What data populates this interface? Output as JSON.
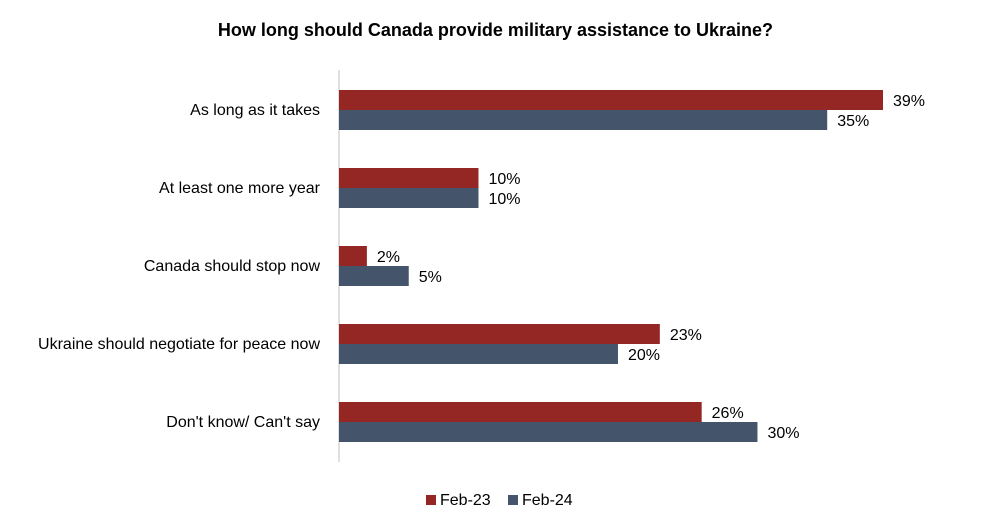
{
  "chart_data": {
    "type": "bar",
    "orientation": "horizontal",
    "title": "How long should Canada provide military assistance to Ukraine?",
    "categories": [
      "As long as it takes",
      "At least one more year",
      "Canada should stop now",
      "Ukraine should negotiate for peace now",
      "Don't know/ Can't say"
    ],
    "series": [
      {
        "name": "Feb-23",
        "color": "#942723",
        "values": [
          39,
          10,
          2,
          23,
          26
        ]
      },
      {
        "name": "Feb-24",
        "color": "#44546a",
        "values": [
          35,
          10,
          5,
          20,
          30
        ]
      }
    ],
    "value_suffix": "%",
    "xlim": [
      0,
      39
    ],
    "grid": false,
    "legend": "bottom"
  }
}
